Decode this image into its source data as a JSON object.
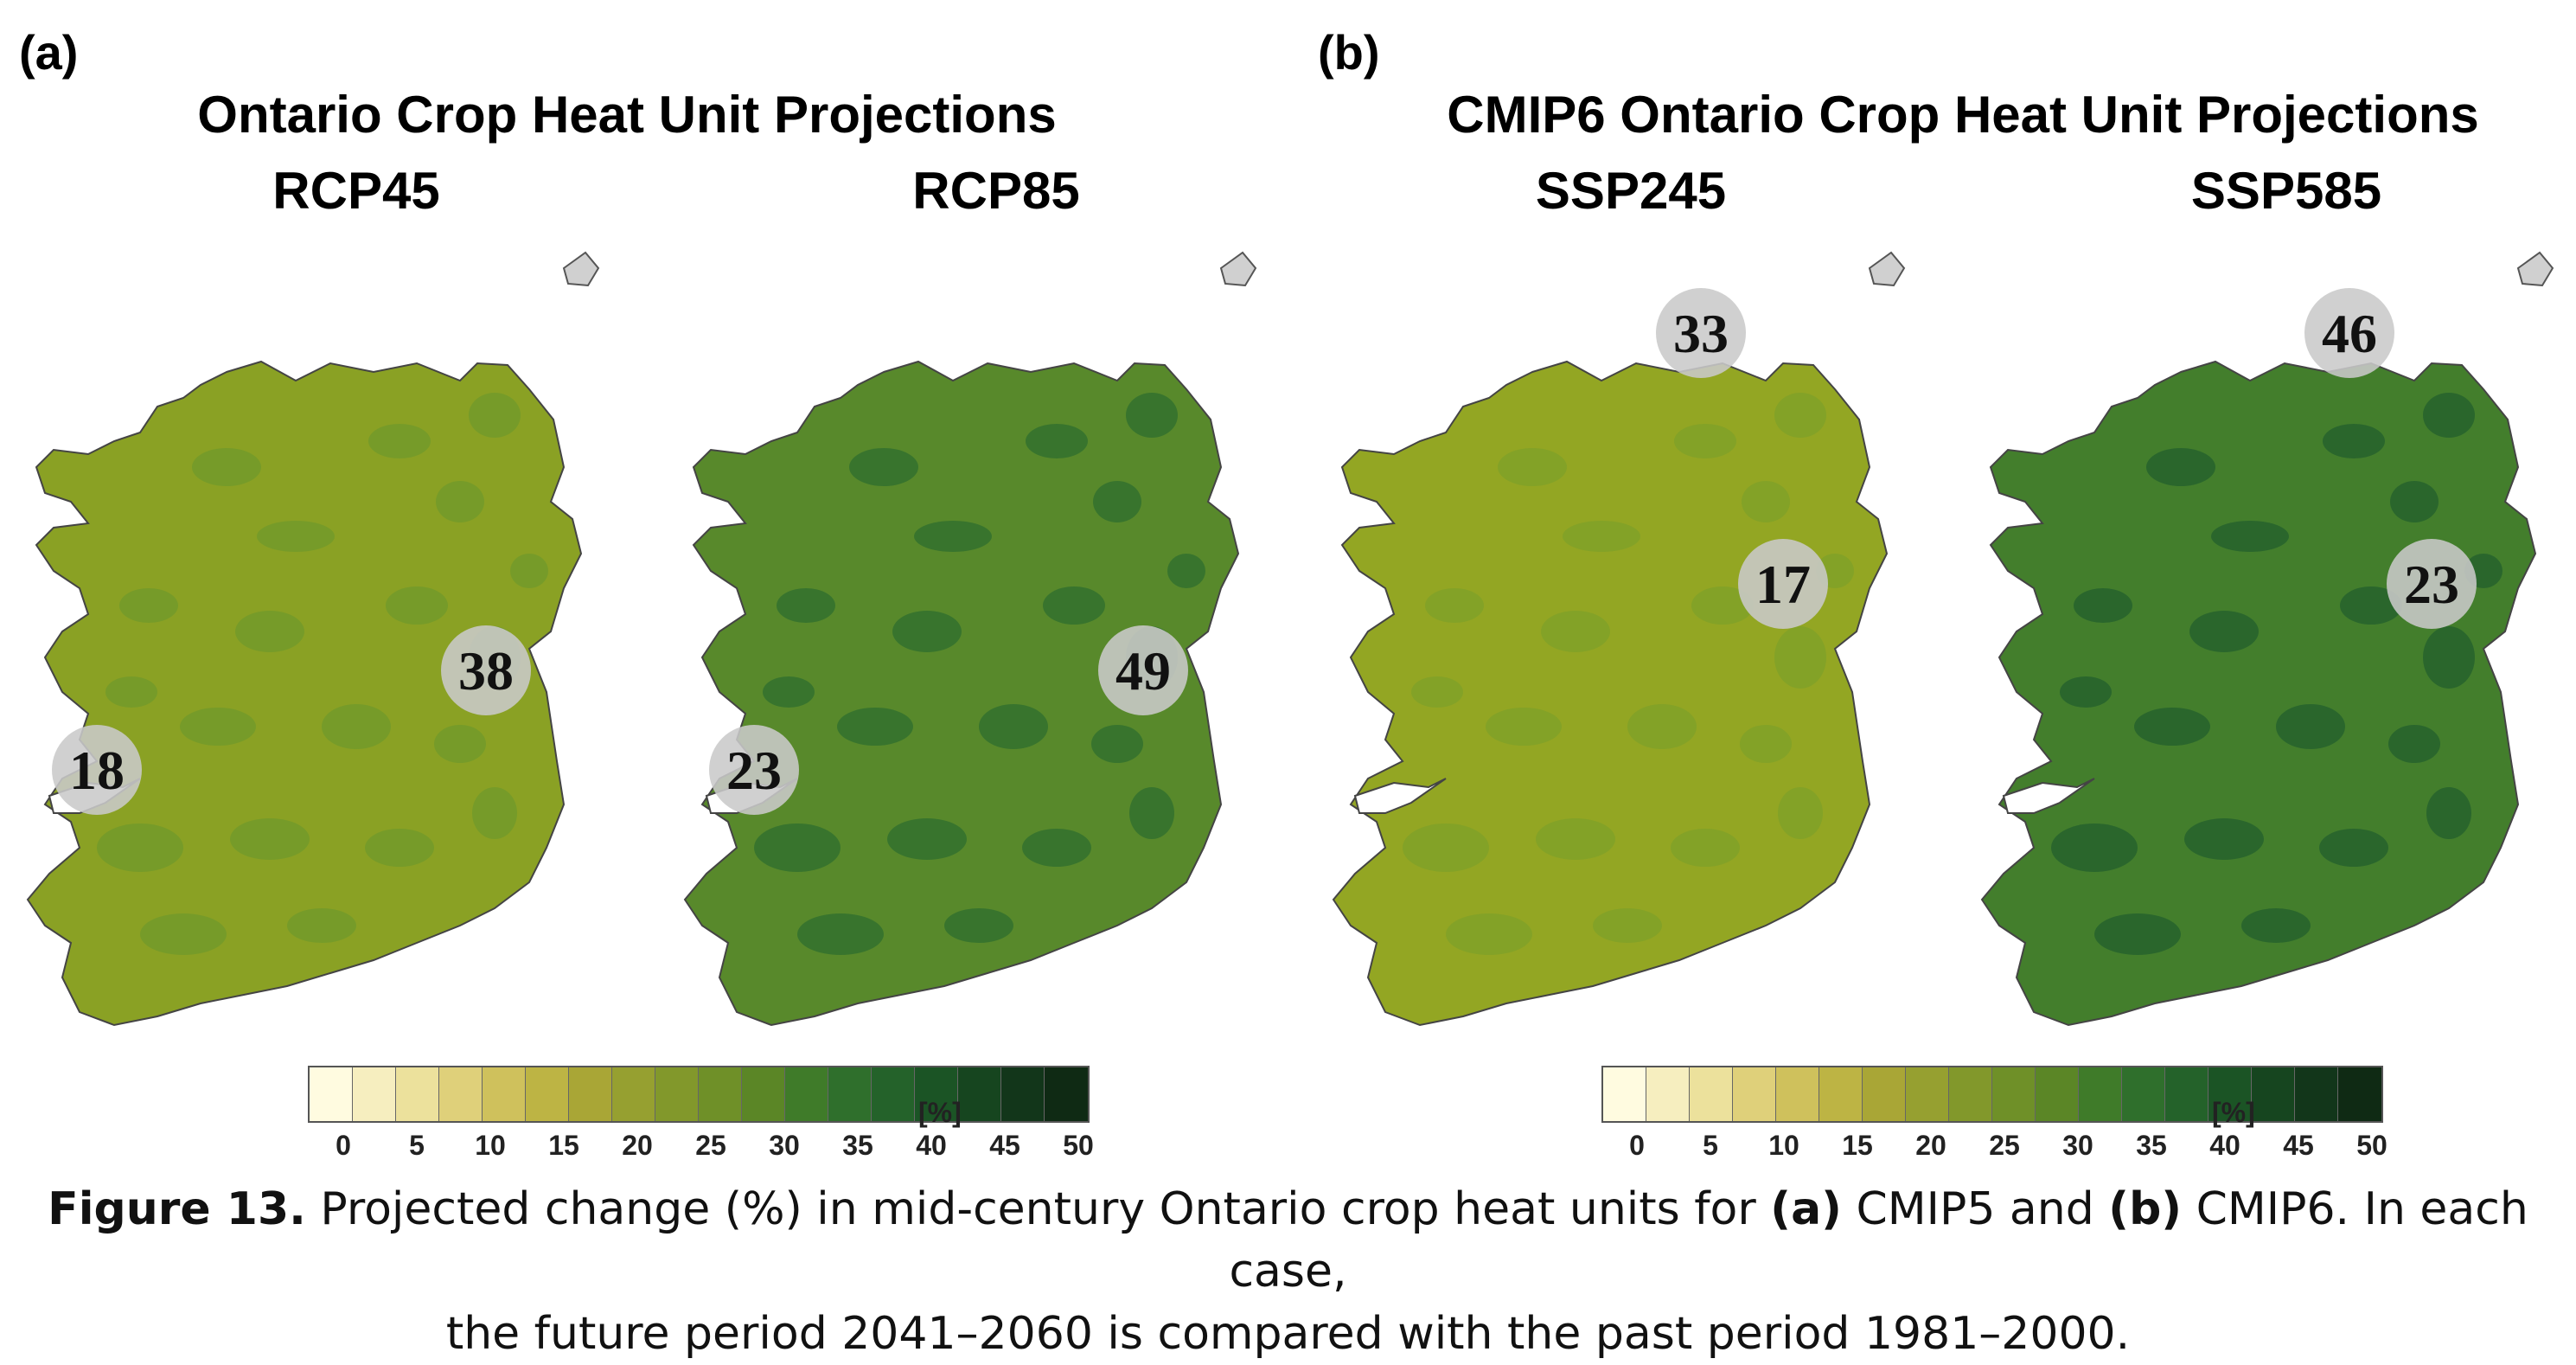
{
  "panels": [
    {
      "letter": "(a)",
      "title": "Ontario Crop Heat Unit Projections",
      "maps": [
        {
          "scenario": "RCP45",
          "level": 0.46,
          "tone": "mid",
          "annotations": [
            {
              "value": "38",
              "pos": "east"
            },
            {
              "value": "18",
              "pos": "shannon"
            }
          ]
        },
        {
          "scenario": "RCP85",
          "level": 0.66,
          "tone": "dark",
          "annotations": [
            {
              "value": "49",
              "pos": "east"
            },
            {
              "value": "23",
              "pos": "shannon"
            }
          ]
        }
      ]
    },
    {
      "letter": "(b)",
      "title": "CMIP6 Ontario Crop Heat Unit Projections",
      "maps": [
        {
          "scenario": "SSP245",
          "level": 0.42,
          "tone": "light",
          "annotations": [
            {
              "value": "33",
              "pos": "north"
            },
            {
              "value": "17",
              "pos": "dublin"
            }
          ]
        },
        {
          "scenario": "SSP585",
          "level": 0.72,
          "tone": "darkest",
          "annotations": [
            {
              "value": "46",
              "pos": "north"
            },
            {
              "value": "23",
              "pos": "dublin"
            }
          ]
        }
      ]
    }
  ],
  "legend": {
    "ticks": [
      "0",
      "5",
      "10",
      "15",
      "20",
      "25",
      "30",
      "35",
      "40",
      "45",
      "50"
    ],
    "unit": "[%]",
    "colors": [
      "#fffbe0",
      "#f6eebf",
      "#ece19c",
      "#dfd07a",
      "#cfc15c",
      "#bdb444",
      "#a9a636",
      "#96a030",
      "#82982b",
      "#6f9028",
      "#5b8626",
      "#3f7b29",
      "#2f6f2c",
      "#24622a",
      "#1b5425",
      "#16451f",
      "#12361a",
      "#0f2a14"
    ]
  },
  "caption": {
    "label": "Figure 13.",
    "t1": " Projected change (%) in mid-century Ontario crop heat units for ",
    "a": "(a)",
    "t2": " CMIP5 and ",
    "b": "(b)",
    "t3": " CMIP6. In each case,",
    "line2": "the future period 2041–2060 is compared with the past period 1981–2000."
  },
  "colors": {
    "light": "#93a623",
    "mid": "#8aa124",
    "dark": "#58892b",
    "darkest": "#437e2c",
    "blob_light": "#7ea02a",
    "blob_mid": "#6f9a2b",
    "blob_dark": "#2e6d2f",
    "blob_darkest": "#215f2c",
    "circle": "#c9c9c9"
  }
}
